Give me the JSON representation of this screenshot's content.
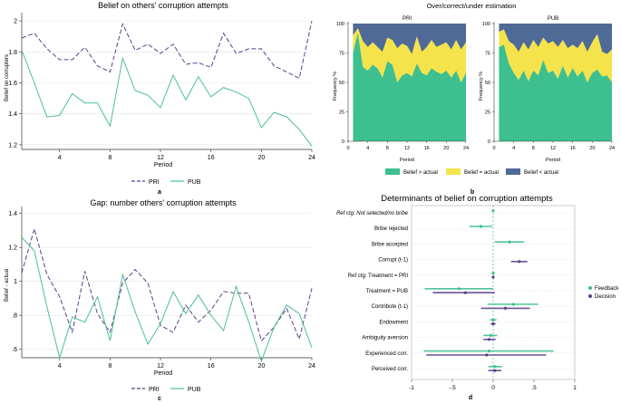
{
  "chart_data": [
    {
      "panel": "a",
      "type": "line",
      "title": "Belief on others' corruption attempts",
      "xlabel": "Period",
      "ylabel": "Belief on corrupters",
      "xlim": [
        1,
        24
      ],
      "ylim": [
        1.17,
        2.03
      ],
      "xticks": [
        4,
        8,
        12,
        16,
        20,
        24
      ],
      "yticks": [
        1.2,
        1.4,
        1.6,
        1.8,
        2
      ],
      "ytick_labels": [
        "1.2",
        "1.4",
        "1.6",
        "1.8",
        "2"
      ],
      "x": [
        1,
        2,
        3,
        4,
        5,
        6,
        7,
        8,
        9,
        10,
        11,
        12,
        13,
        14,
        15,
        16,
        17,
        18,
        19,
        20,
        21,
        22,
        23,
        24
      ],
      "series": [
        {
          "name": "PRI",
          "color": "#5b3f8c",
          "style": "dash",
          "values": [
            1.89,
            1.92,
            1.82,
            1.75,
            1.75,
            1.83,
            1.71,
            1.67,
            1.98,
            1.81,
            1.85,
            1.79,
            1.85,
            1.72,
            1.73,
            1.7,
            1.92,
            1.79,
            1.82,
            1.82,
            1.71,
            1.67,
            1.63,
            2.0
          ]
        },
        {
          "name": "PUB",
          "color": "#4cbf9a",
          "style": "solid",
          "values": [
            1.81,
            1.6,
            1.38,
            1.39,
            1.53,
            1.47,
            1.47,
            1.32,
            1.76,
            1.55,
            1.52,
            1.44,
            1.65,
            1.49,
            1.64,
            1.51,
            1.57,
            1.54,
            1.5,
            1.31,
            1.41,
            1.38,
            1.3,
            1.19
          ]
        }
      ],
      "legend": [
        "PRI",
        "PUB"
      ],
      "legend_position": "bottom",
      "panel_label": "a"
    },
    {
      "panel": "b",
      "type": "area",
      "title": "Over/correct/under estimation",
      "subplots": [
        {
          "title": "PRI",
          "x": [
            1,
            2,
            3,
            4,
            5,
            6,
            7,
            8,
            9,
            10,
            11,
            12,
            13,
            14,
            15,
            16,
            17,
            18,
            19,
            20,
            21,
            22,
            23,
            24
          ],
          "greater": [
            75,
            92,
            63,
            60,
            65,
            62,
            54,
            68,
            65,
            50,
            56,
            58,
            55,
            66,
            58,
            56,
            62,
            59,
            57,
            60,
            54,
            60,
            50,
            58
          ],
          "equal_top": [
            90,
            96,
            85,
            80,
            84,
            80,
            76,
            88,
            86,
            79,
            83,
            81,
            74,
            89,
            76,
            80,
            86,
            80,
            82,
            84,
            78,
            86,
            78,
            84
          ]
        },
        {
          "title": "PUB",
          "x": [
            1,
            2,
            3,
            4,
            5,
            6,
            7,
            8,
            9,
            10,
            11,
            12,
            13,
            14,
            15,
            16,
            17,
            18,
            19,
            20,
            21,
            22,
            23,
            24
          ],
          "greater": [
            80,
            82,
            66,
            58,
            52,
            60,
            51,
            60,
            56,
            69,
            58,
            60,
            53,
            64,
            54,
            62,
            55,
            60,
            50,
            58,
            61,
            55,
            56,
            50
          ],
          "equal_top": [
            93,
            95,
            85,
            82,
            76,
            84,
            78,
            86,
            80,
            88,
            83,
            85,
            80,
            86,
            79,
            82,
            79,
            85,
            76,
            84,
            91,
            76,
            74,
            78
          ]
        }
      ],
      "ylabel": "Frequency %",
      "xlabel": "Period",
      "xticks": [
        0,
        4,
        8,
        12,
        16,
        20,
        24
      ],
      "yticks": [
        0,
        25,
        50,
        75,
        100
      ],
      "xlim": [
        0,
        24
      ],
      "ylim": [
        0,
        100
      ],
      "legend": [
        {
          "label": "Belief > actual",
          "color": "#3dbf8f"
        },
        {
          "label": "Belief = actual",
          "color": "#f4e34a"
        },
        {
          "label": "Belief < actual",
          "color": "#4f6a96"
        }
      ],
      "panel_label": "b"
    },
    {
      "panel": "c",
      "type": "line",
      "title": "Gap: number others' corruption attempts",
      "xlabel": "Period",
      "ylabel": "Belief - actual",
      "xlim": [
        1,
        24
      ],
      "ylim": [
        0.55,
        1.42
      ],
      "xticks": [
        4,
        8,
        12,
        16,
        20,
        24
      ],
      "yticks": [
        0.6,
        0.8,
        1,
        1.2,
        1.4
      ],
      "ytick_labels": [
        ".6",
        ".8",
        "1",
        "1.2",
        "1.4"
      ],
      "x": [
        1,
        2,
        3,
        4,
        5,
        6,
        7,
        8,
        9,
        10,
        11,
        12,
        13,
        14,
        15,
        16,
        17,
        18,
        19,
        20,
        21,
        22,
        23,
        24
      ],
      "series": [
        {
          "name": "PRI",
          "color": "#5b3f8c",
          "style": "dash",
          "values": [
            1.05,
            1.31,
            1.04,
            0.91,
            0.7,
            1.06,
            0.81,
            0.7,
            0.99,
            1.07,
            0.99,
            0.74,
            0.7,
            0.86,
            0.76,
            0.83,
            0.94,
            0.93,
            0.93,
            0.65,
            0.73,
            0.84,
            0.66,
            0.96
          ]
        },
        {
          "name": "PUB",
          "color": "#4cbf9a",
          "style": "solid",
          "values": [
            1.26,
            1.18,
            0.85,
            0.55,
            0.79,
            0.76,
            0.91,
            0.65,
            1.04,
            0.82,
            0.63,
            0.75,
            0.94,
            0.81,
            0.92,
            0.8,
            0.71,
            0.97,
            0.76,
            0.53,
            0.73,
            0.86,
            0.81,
            0.61
          ]
        }
      ],
      "legend": [
        "PRI",
        "PUB"
      ],
      "legend_position": "bottom",
      "panel_label": "c"
    },
    {
      "panel": "d",
      "type": "scatter",
      "title": "Determinants of belief on corruption attempts",
      "xlim": [
        -1,
        1
      ],
      "xticks": [
        -1,
        -0.5,
        0,
        0.5,
        1
      ],
      "xtick_labels": [
        "-1",
        "-.5",
        "0",
        ".5",
        "1"
      ],
      "categories": [
        {
          "label": "Ref ctg: Not selected/no bribe",
          "italic": true
        },
        {
          "label": "Bribe rejected"
        },
        {
          "label": "Bribe accepted"
        },
        {
          "label": "Corrupt (t-1)"
        },
        {
          "label": "Ref ctg: Treatment = PRI"
        },
        {
          "label": "Treatment = PUB"
        },
        {
          "label": "Contribute (t-1)"
        },
        {
          "label": "Endowment"
        },
        {
          "label": "Ambiguity aversion"
        },
        {
          "label": "Experienced corr."
        },
        {
          "label": "Perceived corr."
        }
      ],
      "series": [
        {
          "name": "Feedback",
          "color": "#3dbf8f",
          "estimates": [
            0,
            -0.15,
            0.2,
            null,
            0,
            -0.42,
            0.25,
            0.0,
            -0.03,
            -0.05,
            0.02
          ],
          "ci_low": [
            null,
            -0.29,
            0.02,
            null,
            null,
            -0.84,
            -0.07,
            -0.04,
            -0.12,
            -0.85,
            -0.06
          ],
          "ci_high": [
            null,
            -0.01,
            0.38,
            null,
            null,
            0.0,
            0.55,
            0.04,
            0.05,
            0.74,
            0.11
          ]
        },
        {
          "name": "Decision",
          "color": "#5b3f8c",
          "estimates": [
            null,
            null,
            null,
            0.32,
            0,
            -0.34,
            0.15,
            0.0,
            -0.05,
            -0.08,
            0.02
          ],
          "ci_low": [
            null,
            null,
            null,
            0.22,
            null,
            -0.74,
            -0.15,
            -0.03,
            -0.12,
            -0.82,
            -0.06
          ],
          "ci_high": [
            null,
            null,
            null,
            0.42,
            null,
            0.02,
            0.45,
            0.03,
            0.03,
            0.65,
            0.1
          ]
        }
      ],
      "legend": [
        "Feedback",
        "Decision"
      ],
      "legend_position": "right",
      "panel_label": "d"
    }
  ]
}
